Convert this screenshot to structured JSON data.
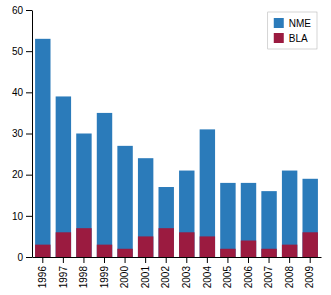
{
  "chart_data": {
    "type": "bar",
    "categories": [
      "1996",
      "1997",
      "1998",
      "1999",
      "2000",
      "2001",
      "2002",
      "2003",
      "2004",
      "2005",
      "2006",
      "2007",
      "2008",
      "2009"
    ],
    "series": [
      {
        "name": "NME",
        "color": "#2B7BBA",
        "values": [
          53,
          39,
          30,
          35,
          27,
          24,
          17,
          21,
          31,
          18,
          18,
          16,
          21,
          19
        ]
      },
      {
        "name": "BLA",
        "color": "#9B1B40",
        "values": [
          3,
          6,
          7,
          3,
          2,
          5,
          7,
          6,
          5,
          2,
          4,
          2,
          3,
          6
        ]
      }
    ],
    "ylim": [
      0,
      60
    ],
    "yticks": [
      0,
      10,
      20,
      30,
      40,
      50,
      60
    ],
    "stacked": false,
    "grid": false,
    "legend": "upper right"
  }
}
